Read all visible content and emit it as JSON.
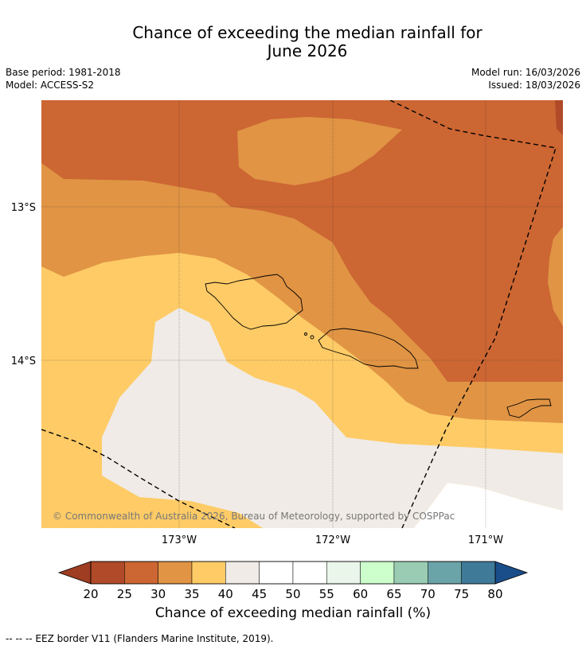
{
  "title": {
    "line1": "Chance of exceeding the median rainfall for",
    "line2": "June 2026"
  },
  "meta": {
    "base_period": "Base period: 1981-2018",
    "model": "Model: ACCESS-S2",
    "model_run": "Model run: 16/03/2026",
    "issued": "Issued: 18/03/2026"
  },
  "map": {
    "lat_labels": [
      "13°S",
      "14°S"
    ],
    "lon_labels": [
      "173°W",
      "172°W",
      "171°W"
    ],
    "copyright": "© Commonwealth of Australia 2026, Bureau of Meteorology, supported by COSPPac",
    "colors": {
      "c25_30": "#cc6633",
      "c30_35": "#e09444",
      "c35_40": "#fecb66",
      "c40_45": "#f0ebe6",
      "c45_55": "#ffffff",
      "coast": "#000000",
      "eez": "#000000"
    }
  },
  "colorbar": {
    "ticks": [
      "20",
      "25",
      "30",
      "35",
      "40",
      "45",
      "50",
      "55",
      "60",
      "65",
      "70",
      "75",
      "80"
    ],
    "colors": [
      "#b04a28",
      "#cc6633",
      "#e09444",
      "#fecb66",
      "#f0ebe6",
      "#ffffff",
      "#ffffff",
      "#eaf6ea",
      "#ccffcc",
      "#99ccb3",
      "#6aa3a8",
      "#3f7a99"
    ],
    "under_color": "#9e3d22",
    "over_color": "#1a4e8a",
    "label": "Chance of exceeding median rainfall (%)"
  },
  "footer": "--  --  -- EEZ border V11 (Flanders Marine Institute, 2019)."
}
